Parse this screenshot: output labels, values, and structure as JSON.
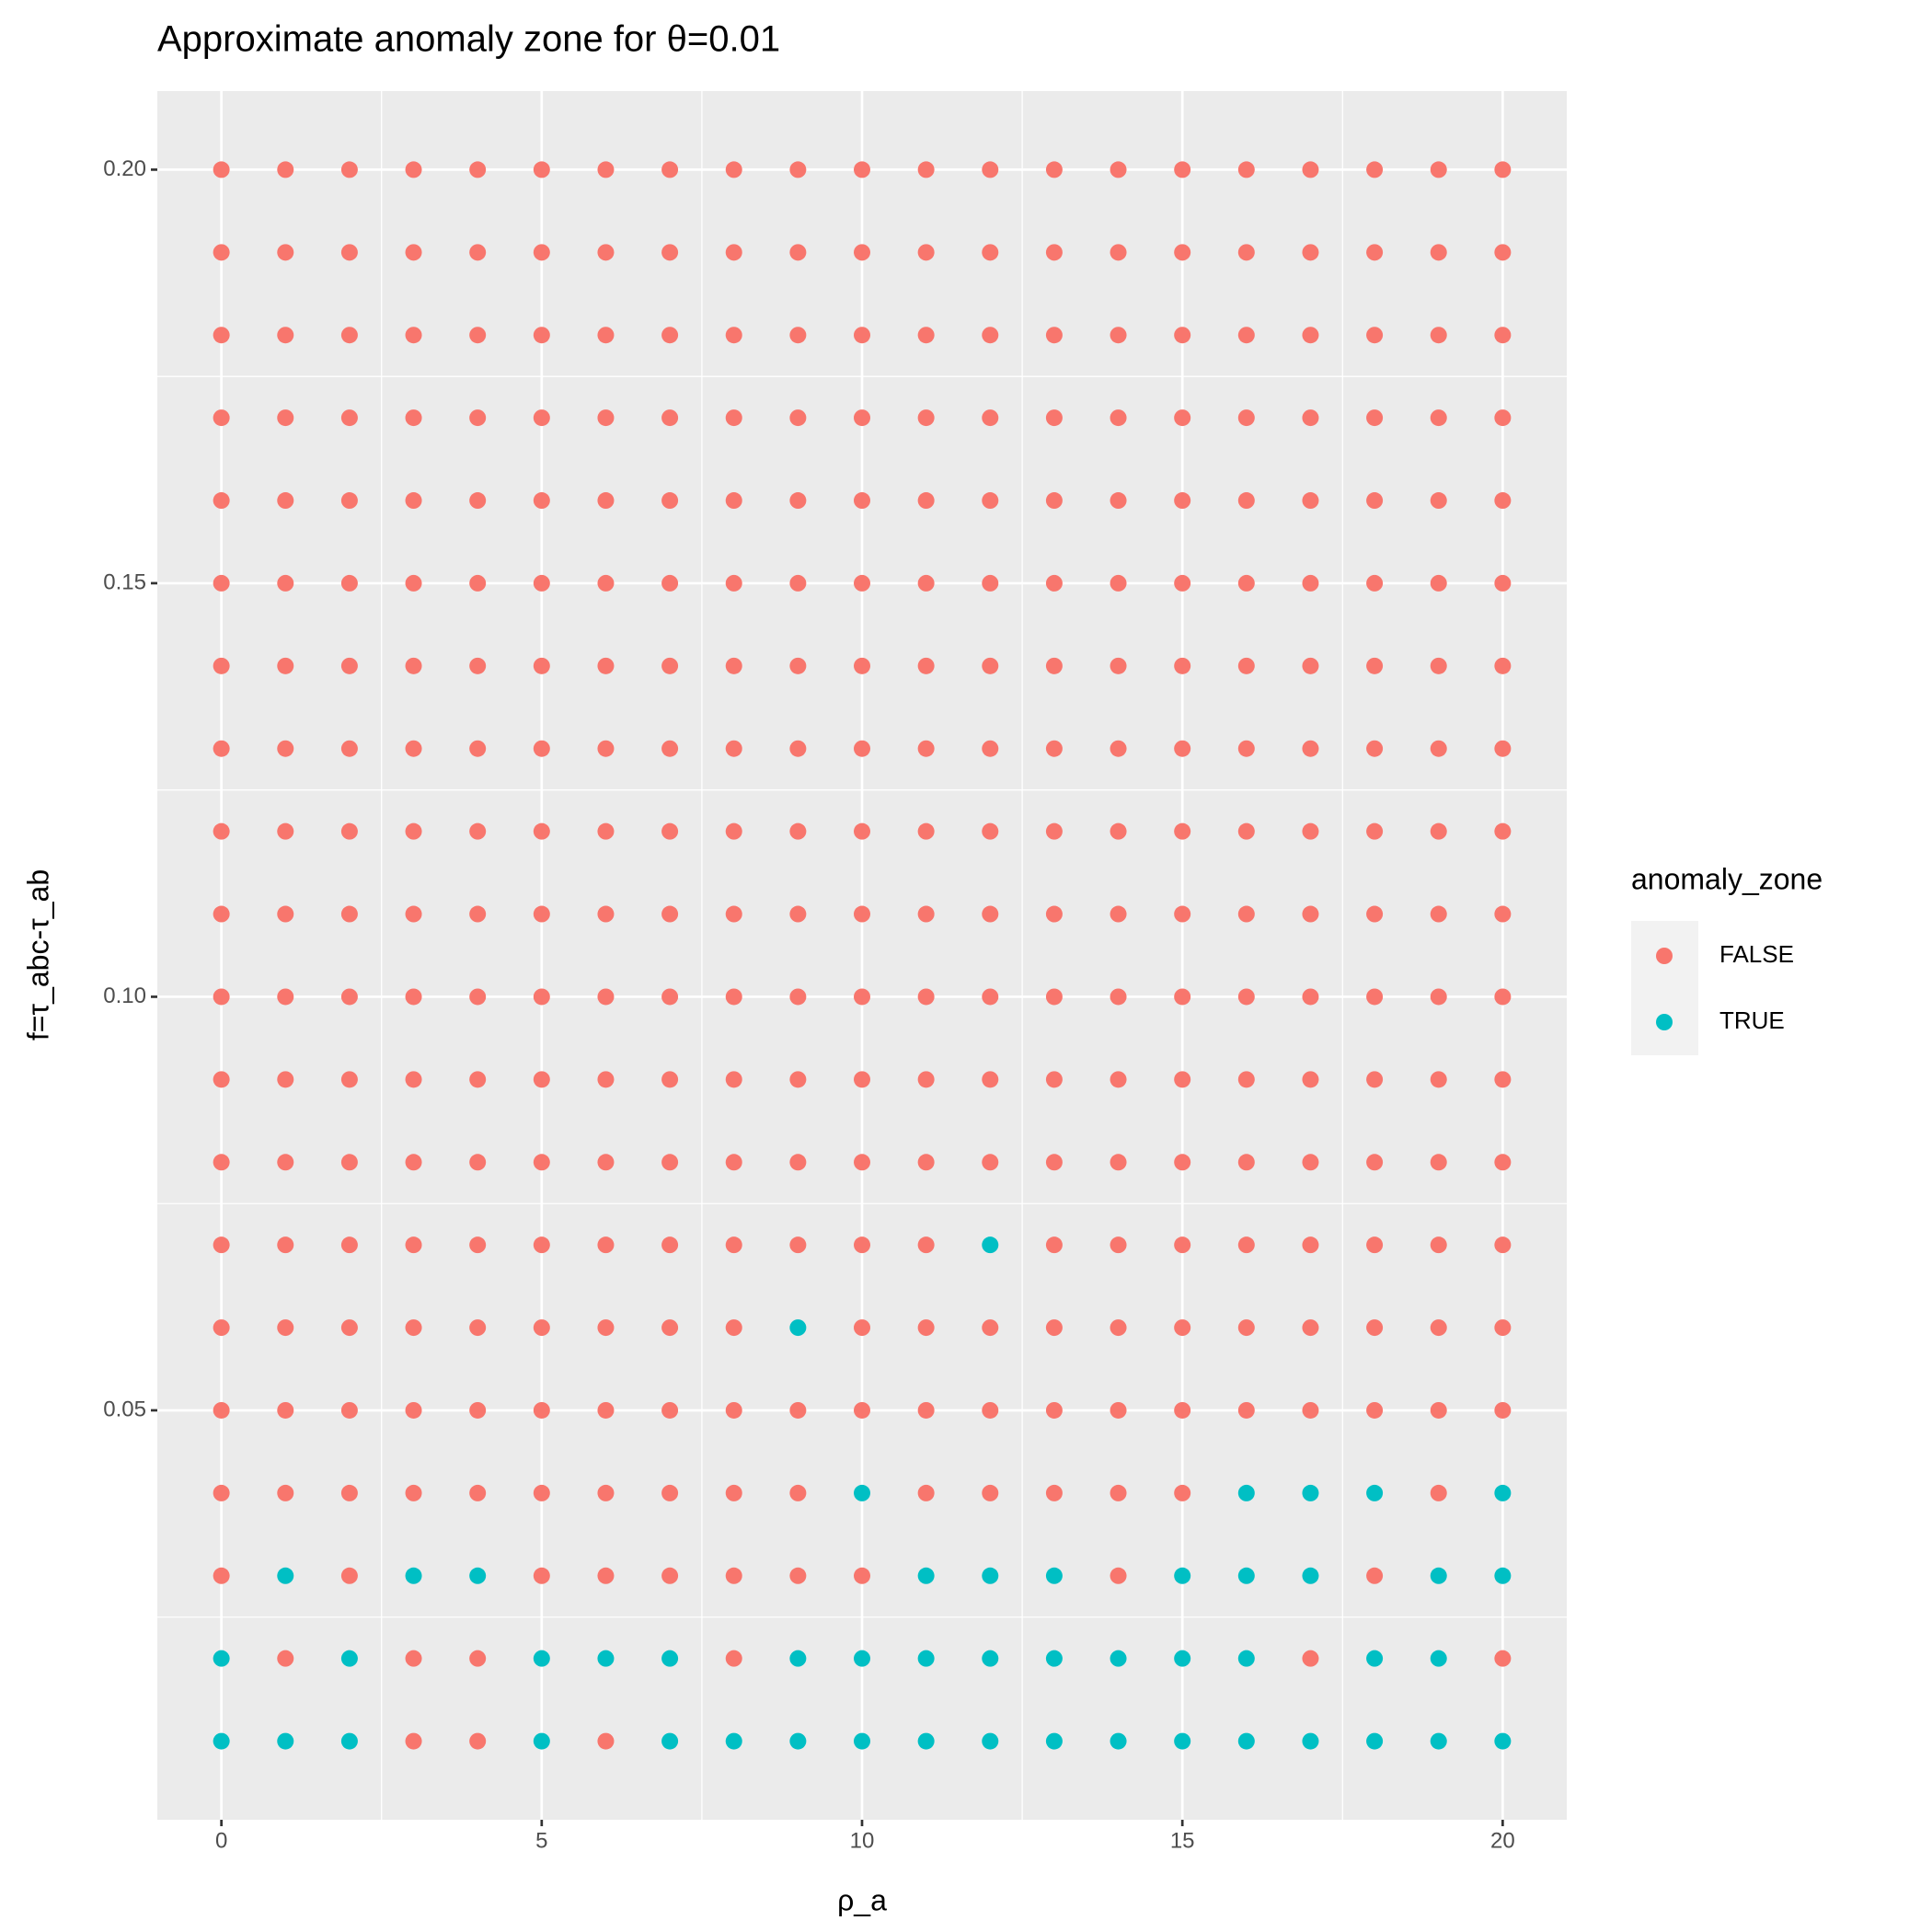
{
  "chart_data": {
    "type": "scatter",
    "title": "Approximate anomaly zone for θ=0.01",
    "x_label": "ρ_a",
    "y_label": "f=τ_abc-τ_ab",
    "legend_title": "anomaly_zone",
    "legend": "right",
    "grid": true,
    "xlim": [
      -1,
      21
    ],
    "ylim": [
      0.0005,
      0.2095
    ],
    "xticks": [
      0,
      5,
      10,
      15,
      20
    ],
    "yticks": [
      0.05,
      {
        "value": 0.1,
        "label": "0.10"
      },
      0.15,
      {
        "value": 0.2,
        "label": "0.20"
      }
    ],
    "series": [
      {
        "name": "FALSE",
        "color": "#F8766D",
        "x": [
          0,
          1,
          2,
          3,
          4,
          5,
          6,
          7,
          8,
          9,
          10,
          11,
          12,
          13,
          14,
          15,
          16,
          17,
          18,
          19,
          20,
          0,
          1,
          2,
          3,
          4,
          5,
          6,
          7,
          8,
          9,
          10,
          11,
          12,
          13,
          14,
          15,
          16,
          17,
          18,
          19,
          20,
          0,
          1,
          2,
          3,
          4,
          5,
          6,
          7,
          8,
          9,
          10,
          11,
          12,
          13,
          14,
          15,
          16,
          17,
          18,
          19,
          20,
          0,
          1,
          2,
          3,
          4,
          5,
          6,
          7,
          8,
          9,
          10,
          11,
          12,
          13,
          14,
          15,
          16,
          17,
          18,
          19,
          20,
          0,
          1,
          2,
          3,
          4,
          5,
          6,
          7,
          8,
          9,
          10,
          11,
          12,
          13,
          14,
          15,
          16,
          17,
          18,
          19,
          20,
          0,
          1,
          2,
          3,
          4,
          5,
          6,
          7,
          8,
          9,
          10,
          11,
          12,
          13,
          14,
          15,
          16,
          17,
          18,
          19,
          20,
          0,
          1,
          2,
          3,
          4,
          5,
          6,
          7,
          8,
          9,
          10,
          11,
          12,
          13,
          14,
          15,
          16,
          17,
          18,
          19,
          20,
          0,
          1,
          2,
          3,
          4,
          5,
          6,
          7,
          8,
          9,
          10,
          11,
          12,
          13,
          14,
          15,
          16,
          17,
          18,
          19,
          20,
          0,
          1,
          2,
          3,
          4,
          5,
          6,
          7,
          8,
          9,
          10,
          11,
          12,
          13,
          14,
          15,
          16,
          17,
          18,
          19,
          20,
          0,
          1,
          2,
          3,
          4,
          5,
          6,
          7,
          8,
          9,
          10,
          11,
          12,
          13,
          14,
          15,
          16,
          17,
          18,
          19,
          20,
          0,
          1,
          2,
          3,
          4,
          5,
          6,
          7,
          8,
          9,
          10,
          11,
          12,
          13,
          14,
          15,
          16,
          17,
          18,
          19,
          20,
          0,
          1,
          2,
          3,
          4,
          5,
          6,
          7,
          8,
          9,
          10,
          11,
          12,
          13,
          14,
          15,
          16,
          17,
          18,
          19,
          20,
          0,
          1,
          2,
          3,
          4,
          5,
          6,
          7,
          8,
          9,
          10,
          11,
          12,
          13,
          14,
          15,
          16,
          17,
          18,
          19,
          20,
          0,
          1,
          2,
          3,
          4,
          5,
          6,
          7,
          8,
          9,
          10,
          11,
          13,
          14,
          15,
          16,
          17,
          18,
          19,
          20,
          0,
          1,
          2,
          3,
          4,
          5,
          6,
          7,
          8,
          10,
          11,
          12,
          13,
          14,
          15,
          16,
          17,
          18,
          19,
          20,
          0,
          1,
          2,
          3,
          4,
          5,
          6,
          7,
          8,
          9,
          10,
          11,
          12,
          13,
          14,
          15,
          16,
          17,
          18,
          19,
          20,
          0,
          1,
          2,
          3,
          4,
          5,
          6,
          7,
          8,
          9,
          11,
          12,
          13,
          14,
          15,
          19,
          0,
          2,
          5,
          6,
          7,
          8,
          9,
          10,
          14,
          18,
          1,
          3,
          4,
          8,
          17,
          20,
          3,
          4,
          6
        ],
        "y": [
          0.2,
          0.2,
          0.2,
          0.2,
          0.2,
          0.2,
          0.2,
          0.2,
          0.2,
          0.2,
          0.2,
          0.2,
          0.2,
          0.2,
          0.2,
          0.2,
          0.2,
          0.2,
          0.2,
          0.2,
          0.2,
          0.19,
          0.19,
          0.19,
          0.19,
          0.19,
          0.19,
          0.19,
          0.19,
          0.19,
          0.19,
          0.19,
          0.19,
          0.19,
          0.19,
          0.19,
          0.19,
          0.19,
          0.19,
          0.19,
          0.19,
          0.19,
          0.18,
          0.18,
          0.18,
          0.18,
          0.18,
          0.18,
          0.18,
          0.18,
          0.18,
          0.18,
          0.18,
          0.18,
          0.18,
          0.18,
          0.18,
          0.18,
          0.18,
          0.18,
          0.18,
          0.18,
          0.18,
          0.17,
          0.17,
          0.17,
          0.17,
          0.17,
          0.17,
          0.17,
          0.17,
          0.17,
          0.17,
          0.17,
          0.17,
          0.17,
          0.17,
          0.17,
          0.17,
          0.17,
          0.17,
          0.17,
          0.17,
          0.17,
          0.16,
          0.16,
          0.16,
          0.16,
          0.16,
          0.16,
          0.16,
          0.16,
          0.16,
          0.16,
          0.16,
          0.16,
          0.16,
          0.16,
          0.16,
          0.16,
          0.16,
          0.16,
          0.16,
          0.16,
          0.16,
          0.15,
          0.15,
          0.15,
          0.15,
          0.15,
          0.15,
          0.15,
          0.15,
          0.15,
          0.15,
          0.15,
          0.15,
          0.15,
          0.15,
          0.15,
          0.15,
          0.15,
          0.15,
          0.15,
          0.15,
          0.15,
          0.14,
          0.14,
          0.14,
          0.14,
          0.14,
          0.14,
          0.14,
          0.14,
          0.14,
          0.14,
          0.14,
          0.14,
          0.14,
          0.14,
          0.14,
          0.14,
          0.14,
          0.14,
          0.14,
          0.14,
          0.14,
          0.13,
          0.13,
          0.13,
          0.13,
          0.13,
          0.13,
          0.13,
          0.13,
          0.13,
          0.13,
          0.13,
          0.13,
          0.13,
          0.13,
          0.13,
          0.13,
          0.13,
          0.13,
          0.13,
          0.13,
          0.13,
          0.12,
          0.12,
          0.12,
          0.12,
          0.12,
          0.12,
          0.12,
          0.12,
          0.12,
          0.12,
          0.12,
          0.12,
          0.12,
          0.12,
          0.12,
          0.12,
          0.12,
          0.12,
          0.12,
          0.12,
          0.12,
          0.11,
          0.11,
          0.11,
          0.11,
          0.11,
          0.11,
          0.11,
          0.11,
          0.11,
          0.11,
          0.11,
          0.11,
          0.11,
          0.11,
          0.11,
          0.11,
          0.11,
          0.11,
          0.11,
          0.11,
          0.11,
          0.1,
          0.1,
          0.1,
          0.1,
          0.1,
          0.1,
          0.1,
          0.1,
          0.1,
          0.1,
          0.1,
          0.1,
          0.1,
          0.1,
          0.1,
          0.1,
          0.1,
          0.1,
          0.1,
          0.1,
          0.1,
          0.09,
          0.09,
          0.09,
          0.09,
          0.09,
          0.09,
          0.09,
          0.09,
          0.09,
          0.09,
          0.09,
          0.09,
          0.09,
          0.09,
          0.09,
          0.09,
          0.09,
          0.09,
          0.09,
          0.09,
          0.09,
          0.08,
          0.08,
          0.08,
          0.08,
          0.08,
          0.08,
          0.08,
          0.08,
          0.08,
          0.08,
          0.08,
          0.08,
          0.08,
          0.08,
          0.08,
          0.08,
          0.08,
          0.08,
          0.08,
          0.08,
          0.08,
          0.07,
          0.07,
          0.07,
          0.07,
          0.07,
          0.07,
          0.07,
          0.07,
          0.07,
          0.07,
          0.07,
          0.07,
          0.07,
          0.07,
          0.07,
          0.07,
          0.07,
          0.07,
          0.07,
          0.07,
          0.06,
          0.06,
          0.06,
          0.06,
          0.06,
          0.06,
          0.06,
          0.06,
          0.06,
          0.06,
          0.06,
          0.06,
          0.06,
          0.06,
          0.06,
          0.06,
          0.06,
          0.06,
          0.06,
          0.06,
          0.05,
          0.05,
          0.05,
          0.05,
          0.05,
          0.05,
          0.05,
          0.05,
          0.05,
          0.05,
          0.05,
          0.05,
          0.05,
          0.05,
          0.05,
          0.05,
          0.05,
          0.05,
          0.05,
          0.05,
          0.05,
          0.04,
          0.04,
          0.04,
          0.04,
          0.04,
          0.04,
          0.04,
          0.04,
          0.04,
          0.04,
          0.04,
          0.04,
          0.04,
          0.04,
          0.04,
          0.04,
          0.03,
          0.03,
          0.03,
          0.03,
          0.03,
          0.03,
          0.03,
          0.03,
          0.03,
          0.03,
          0.02,
          0.02,
          0.02,
          0.02,
          0.02,
          0.02,
          0.01,
          0.01,
          0.01
        ]
      },
      {
        "name": "TRUE",
        "color": "#00BFC4",
        "x": [
          12,
          9,
          10,
          16,
          17,
          18,
          20,
          1,
          3,
          4,
          11,
          12,
          13,
          15,
          16,
          17,
          19,
          20,
          0,
          2,
          5,
          6,
          7,
          9,
          10,
          11,
          12,
          13,
          14,
          15,
          16,
          18,
          19,
          0,
          1,
          2,
          5,
          7,
          8,
          9,
          10,
          11,
          12,
          13,
          14,
          15,
          16,
          17,
          18,
          19,
          20
        ],
        "y": [
          0.07,
          0.06,
          0.04,
          0.04,
          0.04,
          0.04,
          0.04,
          0.03,
          0.03,
          0.03,
          0.03,
          0.03,
          0.03,
          0.03,
          0.03,
          0.03,
          0.03,
          0.03,
          0.02,
          0.02,
          0.02,
          0.02,
          0.02,
          0.02,
          0.02,
          0.02,
          0.02,
          0.02,
          0.02,
          0.02,
          0.02,
          0.02,
          0.02,
          0.01,
          0.01,
          0.01,
          0.01,
          0.01,
          0.01,
          0.01,
          0.01,
          0.01,
          0.01,
          0.01,
          0.01,
          0.01,
          0.01,
          0.01,
          0.01,
          0.01,
          0.01
        ]
      }
    ]
  }
}
